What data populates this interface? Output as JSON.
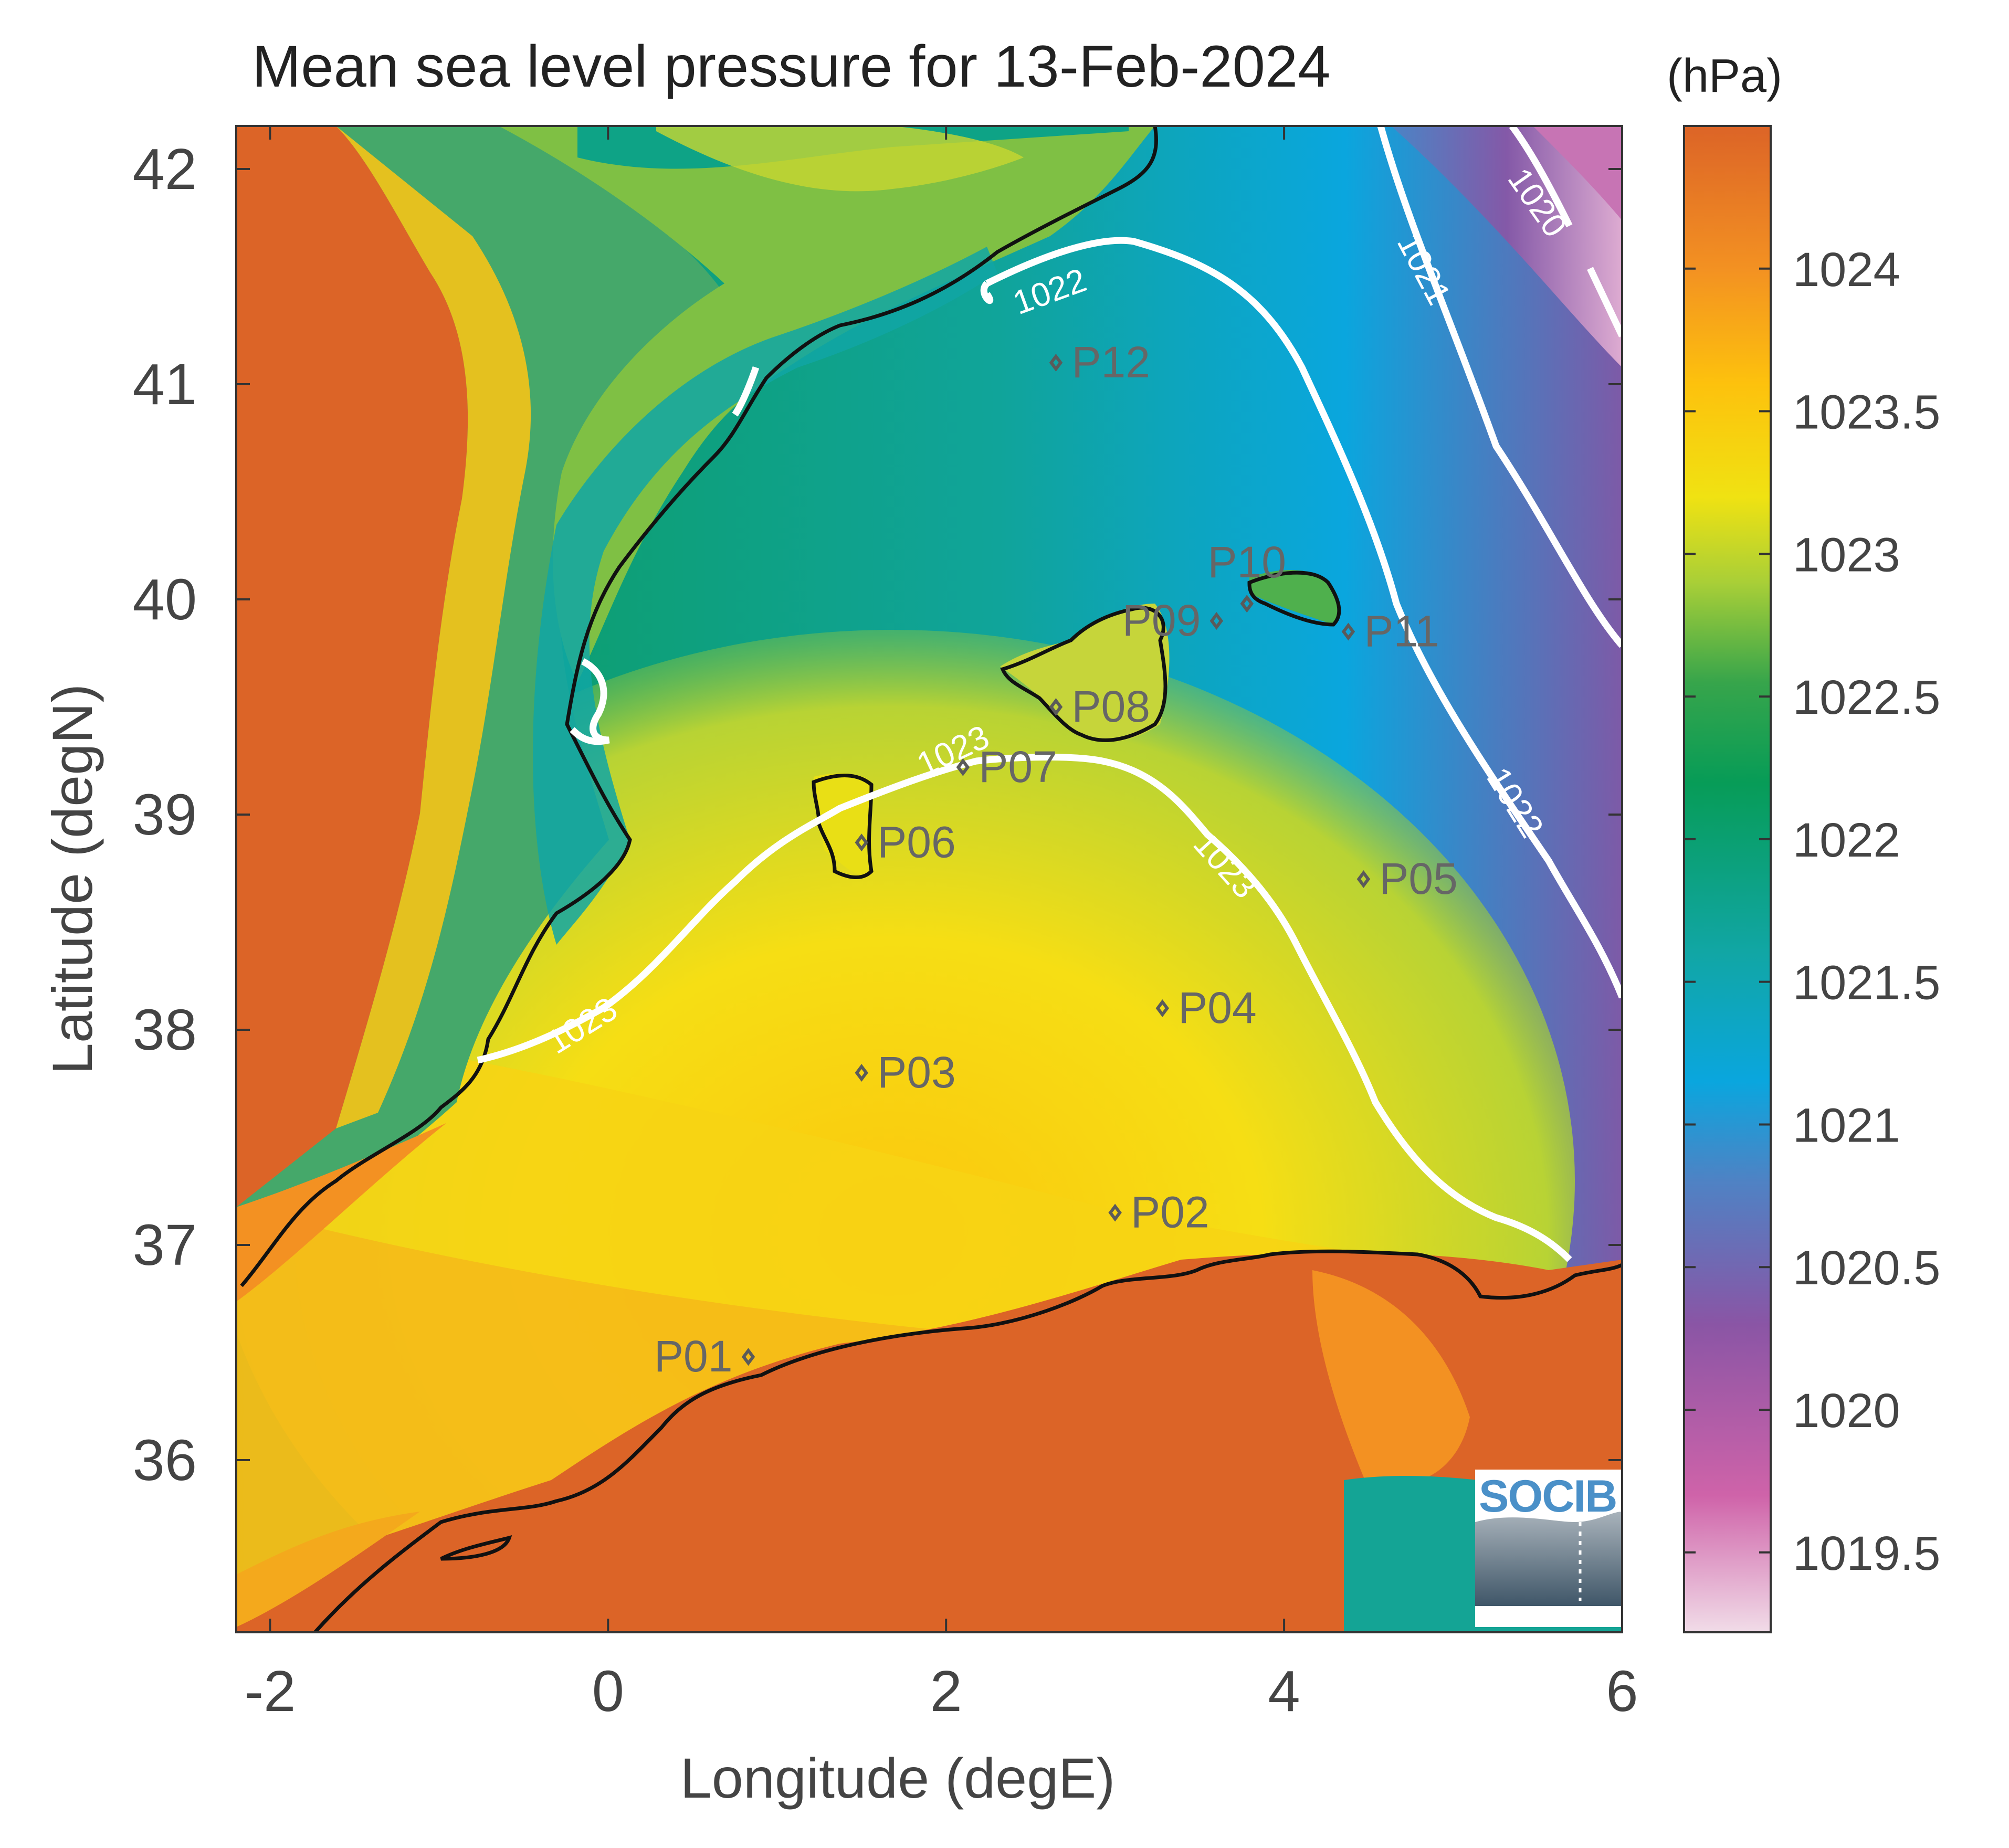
{
  "title": "Mean sea level pressure for 13-Feb-2024",
  "colorbar": {
    "unit_label": "(hPa)",
    "min": 1019.22,
    "max": 1024.5,
    "ticks": [
      "1024",
      "1023.5",
      "1023",
      "1022.5",
      "1022",
      "1021.5",
      "1021",
      "1020.5",
      "1020",
      "1019.5"
    ],
    "tick_values": [
      1024,
      1023.5,
      1023,
      1022.5,
      1022,
      1021.5,
      1021,
      1020.5,
      1020,
      1019.5
    ],
    "stops": [
      {
        "value": 1019.22,
        "color": "#f1dce8"
      },
      {
        "value": 1019.7,
        "color": "#cf63a9"
      },
      {
        "value": 1020.3,
        "color": "#8a55a5"
      },
      {
        "value": 1020.8,
        "color": "#4f82c4"
      },
      {
        "value": 1021.15,
        "color": "#0aa6de"
      },
      {
        "value": 1021.6,
        "color": "#11a6a5"
      },
      {
        "value": 1022.2,
        "color": "#079c57"
      },
      {
        "value": 1022.55,
        "color": "#37a54b"
      },
      {
        "value": 1022.9,
        "color": "#a9cf37"
      },
      {
        "value": 1023.2,
        "color": "#f0e212"
      },
      {
        "value": 1023.6,
        "color": "#fdc10d"
      },
      {
        "value": 1024.0,
        "color": "#f39122"
      },
      {
        "value": 1024.5,
        "color": "#dc6427"
      }
    ]
  },
  "x_axis": {
    "label": "Longitude (degE)",
    "min": -2.2,
    "max": 6,
    "ticks": [
      "-2",
      "0",
      "2",
      "4",
      "6"
    ],
    "tick_values": [
      -2,
      0,
      2,
      4,
      6
    ]
  },
  "y_axis": {
    "label": "Latitude (degN)",
    "min": 35.2,
    "max": 42.2,
    "ticks": [
      "42",
      "41",
      "40",
      "39",
      "38",
      "37",
      "36"
    ],
    "tick_values": [
      42,
      41,
      40,
      39,
      38,
      37,
      36
    ]
  },
  "stations": [
    {
      "id": "P01",
      "lon": 0.83,
      "lat": 36.48,
      "label_side": "left"
    },
    {
      "id": "P02",
      "lon": 3.0,
      "lat": 37.15,
      "label_side": "right"
    },
    {
      "id": "P03",
      "lon": 1.5,
      "lat": 37.8,
      "label_side": "right"
    },
    {
      "id": "P04",
      "lon": 3.28,
      "lat": 38.1,
      "label_side": "right"
    },
    {
      "id": "P05",
      "lon": 4.47,
      "lat": 38.7,
      "label_side": "right"
    },
    {
      "id": "P06",
      "lon": 1.5,
      "lat": 38.87,
      "label_side": "right"
    },
    {
      "id": "P07",
      "lon": 2.1,
      "lat": 39.22,
      "label_side": "right"
    },
    {
      "id": "P08",
      "lon": 2.65,
      "lat": 39.5,
      "label_side": "right"
    },
    {
      "id": "P09",
      "lon": 3.6,
      "lat": 39.9,
      "label_side": "left"
    },
    {
      "id": "P10",
      "lon": 3.78,
      "lat": 39.98,
      "label_side": "above"
    },
    {
      "id": "P11",
      "lon": 4.38,
      "lat": 39.85,
      "label_side": "right"
    },
    {
      "id": "P12",
      "lon": 2.65,
      "lat": 41.1,
      "label_side": "right"
    }
  ],
  "contours": [
    {
      "label": "1020",
      "value": 1020
    },
    {
      "label": "1021",
      "value": 1021
    },
    {
      "label": "1022",
      "value": 1022
    },
    {
      "label": "1023",
      "value": 1023
    }
  ],
  "logo": {
    "text": "SOCIB"
  }
}
